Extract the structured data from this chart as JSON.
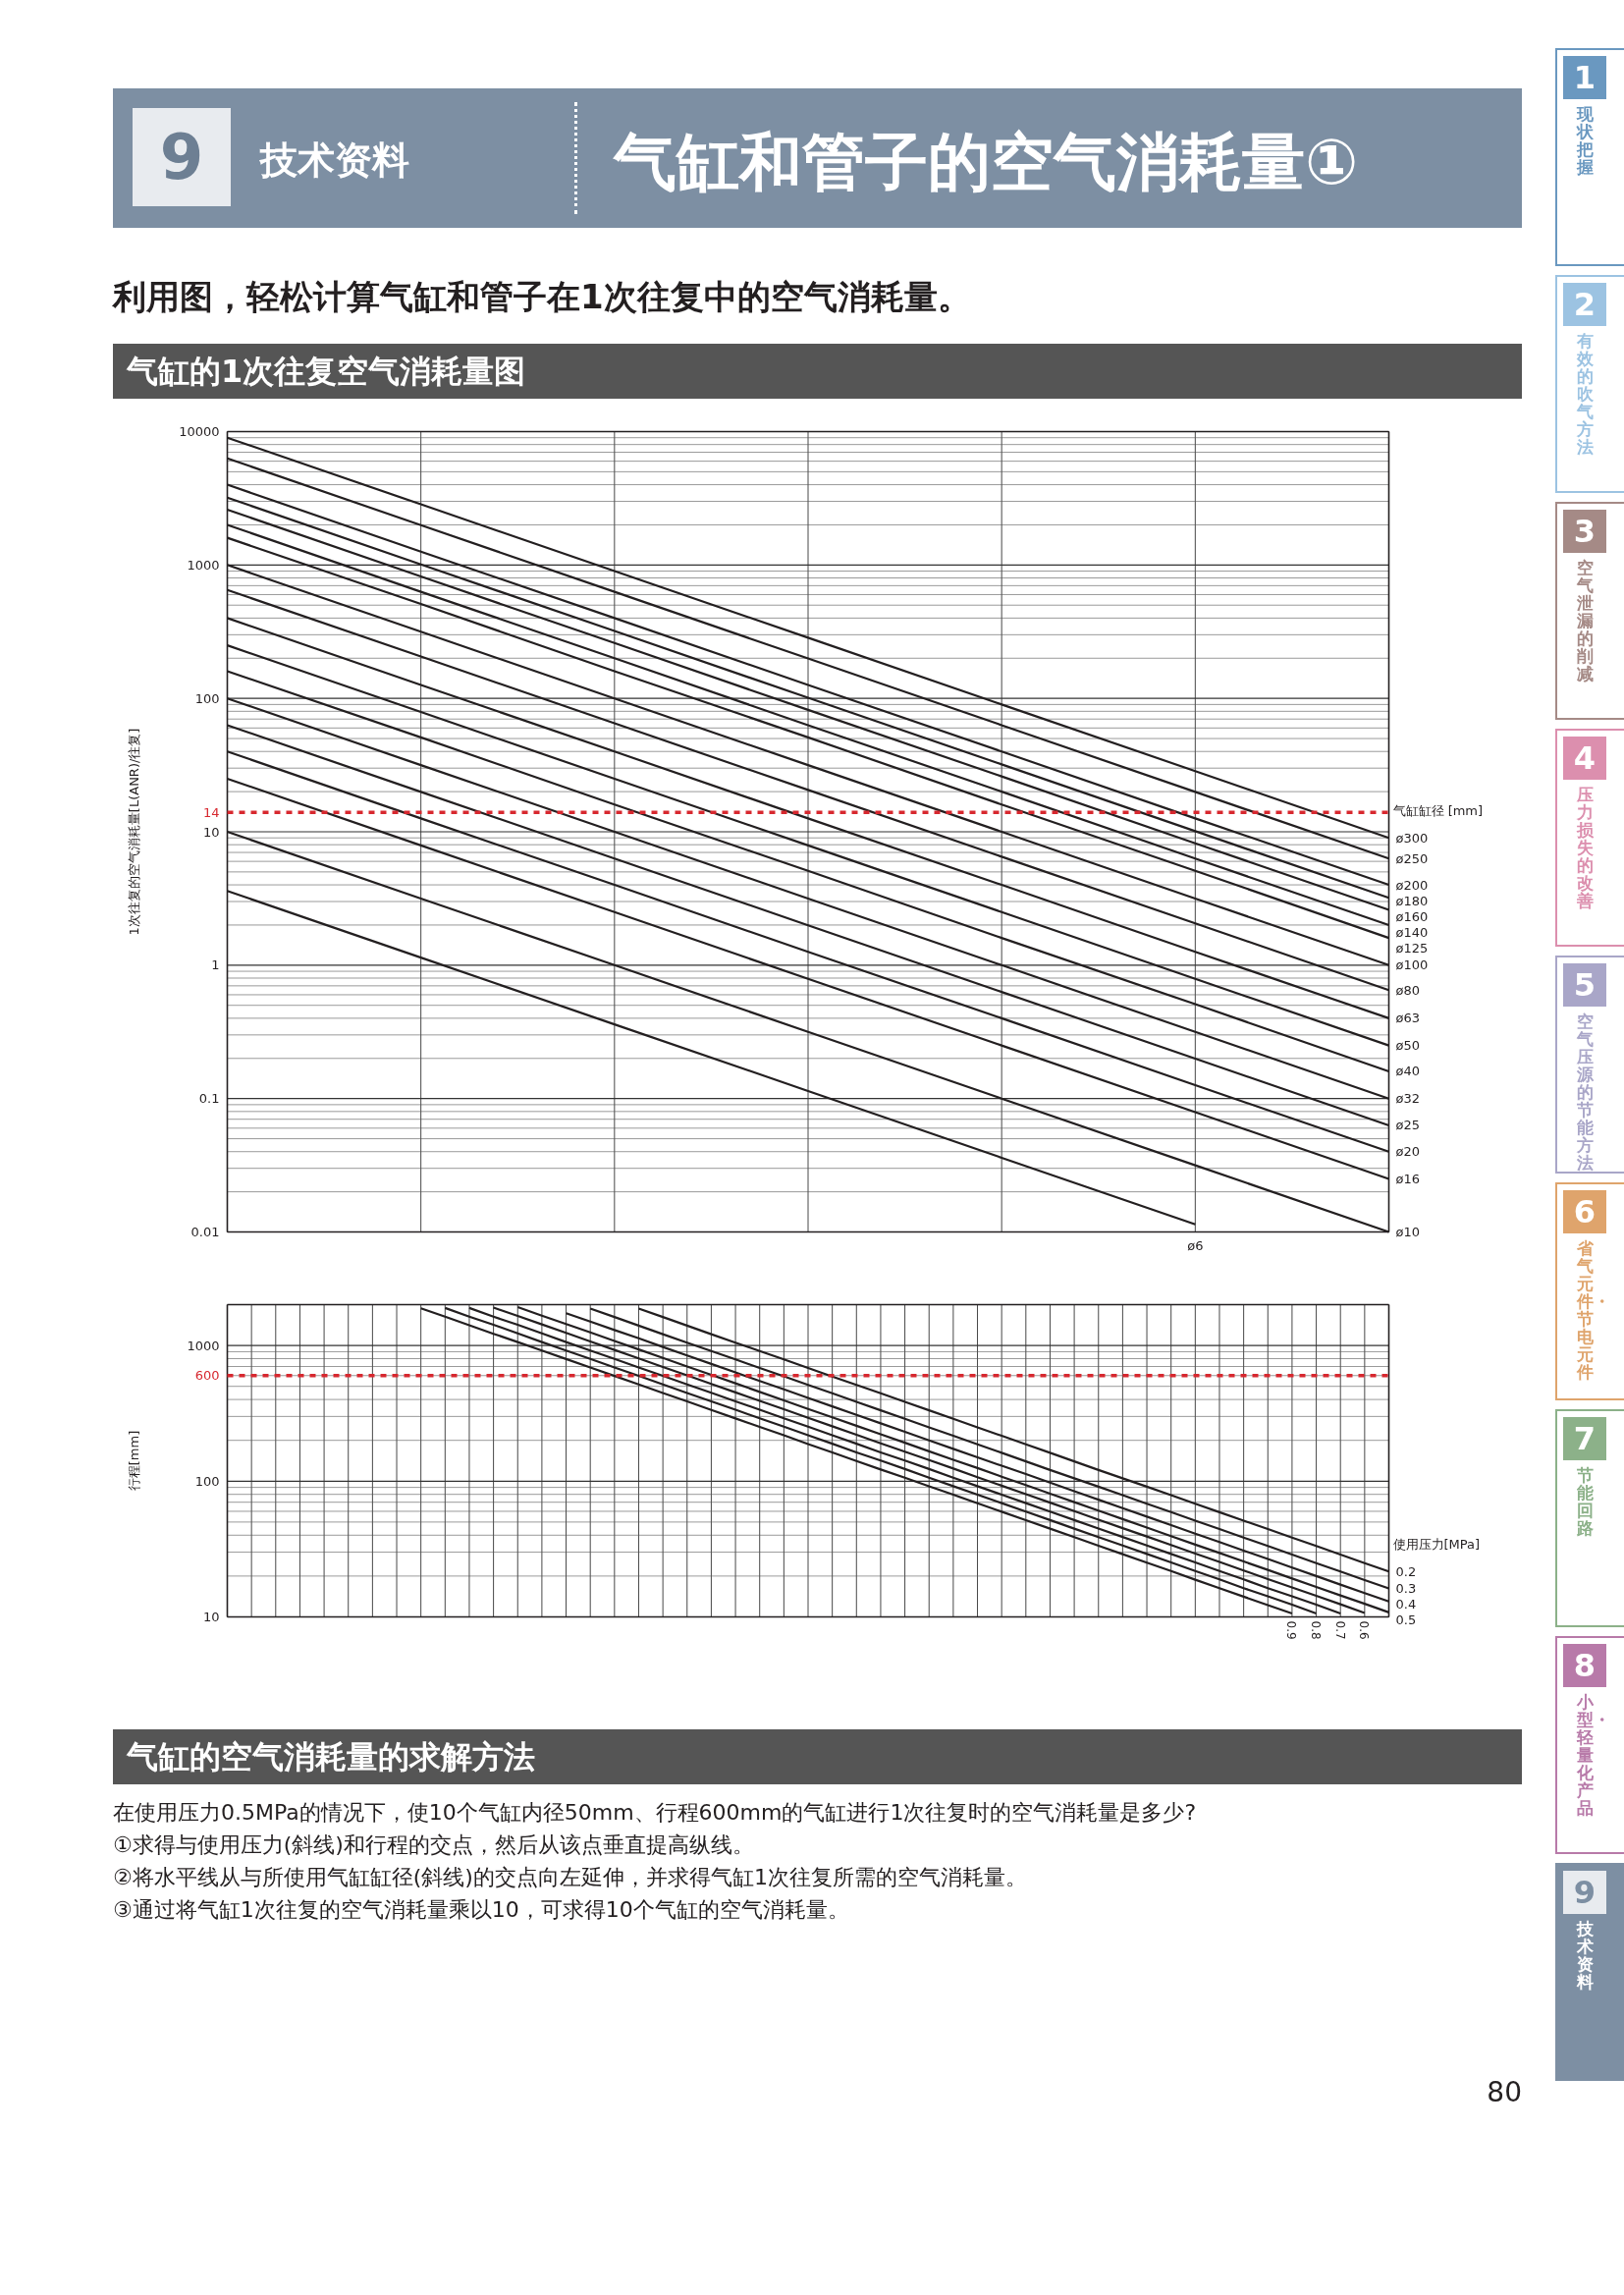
{
  "chart_data": [
    {
      "type": "line",
      "title": "气缸的1次往复空气消耗量图",
      "subtitle": "利用图，轻松计算气缸和管子在1次往复中的空气消耗量。",
      "ylabel": "1次往复的空气消耗量[L(ANR)/往复]",
      "legend_title": "气缸缸径 [mm]",
      "categories": [
        null,
        null,
        null,
        null,
        null,
        null,
        null
      ],
      "log": true,
      "ylim": [
        0.01,
        10000
      ],
      "yticks": [
        0.01,
        0.1,
        1,
        10,
        100,
        1000,
        10000
      ],
      "grid": true,
      "tick_labels": "y",
      "series": [
        {
          "name": "ø300",
          "color": "#231f20",
          "values": [
            9000,
            2850,
            900,
            285,
            90,
            28.5,
            9.0
          ]
        },
        {
          "name": "ø250",
          "color": "#231f20",
          "values": [
            6300,
            1990,
            630,
            199,
            63,
            19.9,
            6.3
          ]
        },
        {
          "name": "ø200",
          "color": "#231f20",
          "values": [
            4000,
            1260,
            400,
            126,
            40,
            12.6,
            4.0
          ]
        },
        {
          "name": "ø180",
          "color": "#231f20",
          "values": [
            3200,
            1010,
            320,
            101,
            32,
            10.1,
            3.2
          ]
        },
        {
          "name": "ø160",
          "color": "#231f20",
          "values": [
            2600,
            820,
            260,
            82,
            26,
            8.2,
            2.6
          ]
        },
        {
          "name": "ø140",
          "color": "#231f20",
          "values": [
            2000,
            630,
            200,
            63,
            20,
            6.3,
            2.0
          ]
        },
        {
          "name": "ø125",
          "color": "#231f20",
          "values": [
            1600,
            510,
            160,
            51,
            16,
            5.1,
            1.6
          ]
        },
        {
          "name": "ø100",
          "color": "#231f20",
          "values": [
            1000,
            316,
            100,
            31.6,
            10,
            3.16,
            1.0
          ]
        },
        {
          "name": "ø80",
          "color": "#231f20",
          "values": [
            650,
            206,
            65,
            20.6,
            6.5,
            2.06,
            0.65
          ]
        },
        {
          "name": "ø63",
          "color": "#231f20",
          "values": [
            400,
            126,
            40,
            12.6,
            4.0,
            1.26,
            0.4
          ]
        },
        {
          "name": "ø50",
          "color": "#231f20",
          "values": [
            250,
            79,
            25,
            7.9,
            2.5,
            0.79,
            0.25
          ]
        },
        {
          "name": "ø40",
          "color": "#231f20",
          "values": [
            160,
            51,
            16,
            5.1,
            1.6,
            0.51,
            0.16
          ]
        },
        {
          "name": "ø32",
          "color": "#231f20",
          "values": [
            100,
            31.6,
            10,
            3.16,
            1.0,
            0.316,
            0.1
          ]
        },
        {
          "name": "ø25",
          "color": "#231f20",
          "values": [
            63,
            19.9,
            6.3,
            1.99,
            0.63,
            0.199,
            0.063
          ]
        },
        {
          "name": "ø20",
          "color": "#231f20",
          "values": [
            40,
            12.6,
            4.0,
            1.26,
            0.4,
            0.126,
            0.04
          ]
        },
        {
          "name": "ø16",
          "color": "#231f20",
          "values": [
            25,
            7.9,
            2.5,
            0.79,
            0.25,
            0.079,
            0.025
          ]
        },
        {
          "name": "ø10",
          "color": "#231f20",
          "values": [
            10,
            3.16,
            1.0,
            0.316,
            0.1,
            0.0316,
            0.01
          ]
        },
        {
          "name": "ø6",
          "color": "#231f20",
          "values": [
            3.6,
            1.14,
            0.36,
            0.114,
            0.036,
            0.0114,
            null
          ]
        }
      ],
      "ref_lines": [
        {
          "axis": "y",
          "value": 14,
          "label": "14",
          "color": "#d7282f",
          "line_style": "dashed"
        }
      ],
      "annotations": [
        "9",
        "技术资料",
        "气缸和管子的空气消耗量①",
        "1 现状把握",
        "2 有效的吹气方法",
        "3 空气泄漏的削减",
        "4 压力损失的改善",
        "5 空气压源的节能方法",
        "6 省气元件・节电元件",
        "7 节能回路",
        "8 小型・轻量化产品",
        "9 技术资料"
      ]
    },
    {
      "type": "line",
      "ylabel": "行程[mm]",
      "legend_title": "使用压力[MPa]",
      "categories": [
        null,
        null,
        null,
        null,
        null,
        null,
        null,
        null,
        null,
        null,
        null,
        null,
        null,
        null,
        null,
        null,
        null,
        null,
        null,
        null,
        null,
        null,
        null,
        null,
        null,
        null,
        null,
        null,
        null,
        null,
        null,
        null,
        null,
        null,
        null,
        null,
        null,
        null,
        null,
        null,
        null,
        null,
        null,
        null,
        null,
        null,
        null,
        null,
        null
      ],
      "log": true,
      "ylim": [
        10,
        2000
      ],
      "yticks": [
        10,
        100,
        1000
      ],
      "grid": true,
      "tick_labels": "y",
      "series": [
        {
          "name": "0.2",
          "color": "#231f20",
          "values": [
            null,
            null,
            null,
            null,
            null,
            null,
            null,
            null,
            null,
            null,
            null,
            null,
            null,
            null,
            null,
            null,
            null,
            1870,
            1620,
            1400,
            1210,
            1050,
            911,
            789,
            683,
            591,
            512,
            444,
            384,
            333,
            288,
            249,
            216,
            187,
            162,
            140,
            121,
            105,
            91.1,
            78.9,
            68.3,
            59.1,
            51.2,
            44.4,
            38.4,
            33.3,
            28.8,
            24.9,
            21.6
          ]
        },
        {
          "name": "0.3",
          "color": "#231f20",
          "values": [
            null,
            null,
            null,
            null,
            null,
            null,
            null,
            null,
            null,
            null,
            null,
            null,
            null,
            null,
            null,
            1870,
            1620,
            1400,
            1210,
            1050,
            911,
            789,
            683,
            592,
            512,
            444,
            384,
            333,
            288,
            249,
            216,
            187,
            162,
            140,
            121,
            105,
            91.1,
            78.9,
            68.3,
            59.2,
            51.2,
            44.4,
            38.4,
            33.3,
            28.8,
            24.9,
            21.6,
            18.7,
            16.2
          ]
        },
        {
          "name": "0.4",
          "color": "#231f20",
          "values": [
            null,
            null,
            null,
            null,
            null,
            null,
            null,
            null,
            null,
            null,
            null,
            null,
            null,
            null,
            1730,
            1500,
            1300,
            1130,
            975,
            844,
            731,
            633,
            548,
            475,
            411,
            356,
            308,
            267,
            231,
            200,
            173,
            150,
            130,
            113,
            97.5,
            84.4,
            73.1,
            63.3,
            54.8,
            47.5,
            41.1,
            35.6,
            30.8,
            26.7,
            23.1,
            20.0,
            17.3,
            15.0,
            13.0
          ]
        },
        {
          "name": "0.5",
          "color": "#231f20",
          "values": [
            null,
            null,
            null,
            null,
            null,
            null,
            null,
            null,
            null,
            null,
            null,
            null,
            1920,
            1660,
            1440,
            1250,
            1080,
            935,
            810,
            701,
            607,
            526,
            455,
            394,
            341,
            296,
            256,
            222,
            192,
            166,
            144,
            125,
            108,
            93.5,
            81.0,
            70.1,
            60.7,
            52.6,
            45.5,
            39.4,
            34.1,
            29.6,
            25.6,
            22.2,
            19.2,
            16.6,
            14.4,
            12.5,
            10.8
          ]
        },
        {
          "name": "0.6",
          "color": "#231f20",
          "values": [
            null,
            null,
            null,
            null,
            null,
            null,
            null,
            null,
            null,
            null,
            null,
            1900,
            1650,
            1430,
            1240,
            1070,
            927,
            803,
            695,
            602,
            521,
            451,
            391,
            339,
            293,
            254,
            220,
            190,
            165,
            143,
            124,
            107,
            92.7,
            80.3,
            69.5,
            60.2,
            52.1,
            45.1,
            39.1,
            33.9,
            29.3,
            25.4,
            22.0,
            19.0,
            16.5,
            14.3,
            12.4,
            10.7,
            null
          ]
        },
        {
          "name": "0.7",
          "color": "#231f20",
          "values": [
            null,
            null,
            null,
            null,
            null,
            null,
            null,
            null,
            null,
            null,
            1890,
            1630,
            1420,
            1230,
            1060,
            919,
            796,
            689,
            597,
            517,
            448,
            388,
            336,
            291,
            252,
            218,
            189,
            163,
            142,
            123,
            106,
            91.9,
            79.6,
            68.9,
            59.7,
            51.7,
            44.8,
            38.8,
            33.6,
            29.1,
            25.2,
            21.8,
            18.9,
            16.3,
            14.2,
            12.3,
            10.6,
            null,
            null
          ]
        },
        {
          "name": "0.8",
          "color": "#231f20",
          "values": [
            null,
            null,
            null,
            null,
            null,
            null,
            null,
            null,
            null,
            1890,
            1630,
            1420,
            1230,
            1060,
            919,
            796,
            689,
            597,
            517,
            447,
            387,
            336,
            291,
            252,
            218,
            189,
            163,
            142,
            123,
            106,
            91.9,
            79.6,
            68.9,
            59.7,
            51.7,
            44.7,
            38.7,
            33.6,
            29.1,
            25.2,
            21.8,
            18.9,
            16.3,
            14.2,
            12.3,
            10.6,
            null,
            null,
            null
          ]
        },
        {
          "name": "0.9",
          "color": "#231f20",
          "values": [
            null,
            null,
            null,
            null,
            null,
            null,
            null,
            null,
            1880,
            1630,
            1410,
            1220,
            1060,
            918,
            795,
            688,
            596,
            516,
            447,
            387,
            335,
            290,
            251,
            218,
            188,
            163,
            141,
            122,
            106,
            91.8,
            79.5,
            68.8,
            59.6,
            51.6,
            44.7,
            38.7,
            33.5,
            29.0,
            25.1,
            21.8,
            18.8,
            16.3,
            14.1,
            12.2,
            10.6,
            null,
            null,
            null,
            null
          ]
        }
      ],
      "ref_lines": [
        {
          "axis": "y",
          "value": 600,
          "label": "600",
          "color": "#d7282f",
          "line_style": "dashed"
        }
      ],
      "annotations": [
        "气缸的空气消耗量的求解方法",
        "在使用压力0.5MPa的情况下，使10个气缸内径50mm、行程600mm的气缸进行1次往复时的空气消耗量是多少?",
        "①求得与使用压力(斜线)和行程的交点，然后从该点垂直提高纵线。",
        "②将水平线从与所使用气缸缸径(斜线)的交点向左延伸，并求得气缸1次往复所需的空气消耗量。",
        "③通过将气缸1次往复的空气消耗量乘以10，可求得10个气缸的空气消耗量。",
        "80"
      ]
    }
  ]
}
